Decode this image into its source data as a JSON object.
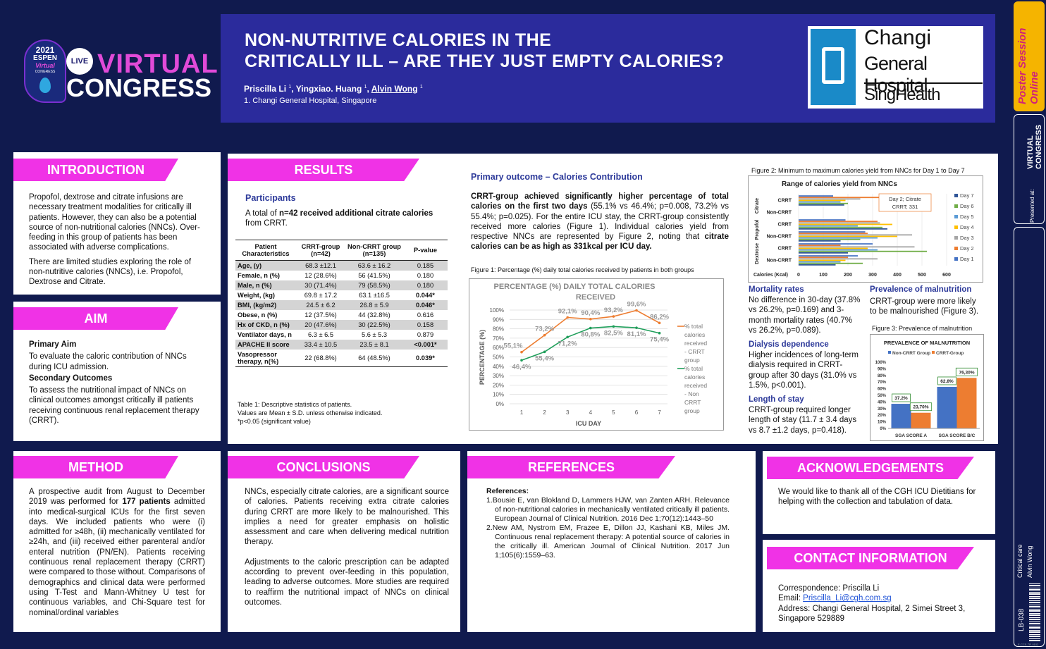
{
  "header": {
    "year": "2021",
    "espen": "ESPEN",
    "virtual": "Virtual",
    "congress_small": "CONGRESS",
    "live": "LIVE",
    "virtual_big": "VIRTUAL",
    "congress_big": "CONGRESS",
    "title1": "NON-NUTRITIVE CALORIES IN THE",
    "title2": "CRITICALLY ILL – ARE THEY JUST EMPTY CALORIES?",
    "author1": "Priscilla Li",
    "author2": "Yingxiao. Huang",
    "author3": "Alvin Wong",
    "sup": "1",
    "affiliation": "1. Changi General Hospital, Singapore",
    "logo_line1": "Changi",
    "logo_line2": "General Hospital",
    "logo_line3": "SingHealth"
  },
  "side": {
    "poster_session": "Poster Session Online",
    "presented_at": "Presented at:",
    "vc_label": "VIRTUAL CONGRESS",
    "category": "Critical care",
    "author": "Alvin Wong",
    "code": "LB-038",
    "small_code": "E-CCS-TR-0102"
  },
  "intro": {
    "title": "INTRODUCTION",
    "p1": "Propofol, dextrose and citrate infusions are necessary treatment modalities for critically ill patients. However, they can also be a potential source of non-nutritional calories (NNCs). Over-feeding in this group of patients has been associated with adverse complications.",
    "p2": "There are limited studies exploring the role of non-nutritive calories (NNCs), i.e. Propofol, Dextrose and Citrate."
  },
  "aim": {
    "title": "AIM",
    "h1": "Primary Aim",
    "p1": "To evaluate the caloric contribution of NNCs during ICU admission.",
    "h2": "Secondary Outcomes",
    "p2": "To assess the nutritional impact of NNCs on clinical outcomes amongst critically ill patients receiving continuous renal replacement therapy (CRRT)."
  },
  "results": {
    "title": "RESULTS",
    "participants": "Participants",
    "part_pre": "A total of ",
    "part_bold": "n=42 received additional citrate calories",
    "part_post": " from CRRT.",
    "table_head": [
      "Patient Characteristics",
      "CRRT-group (n=42)",
      "Non-CRRT group (n=135)",
      "P-value"
    ],
    "table_rows": [
      [
        "Age, (y)",
        "68.3 ±12.1",
        "63.6 ± 16.2",
        "0.185"
      ],
      [
        "Female, n (%)",
        "12 (28.6%)",
        "56 (41.5%)",
        "0.180"
      ],
      [
        "Male, n (%)",
        "30 (71.4%)",
        "79 (58.5%)",
        "0.180"
      ],
      [
        "Weight, (kg)",
        "69.8 ± 17.2",
        "63.1 ±16.5",
        "0.044*"
      ],
      [
        "BMI, (kg/m2)",
        "24.5 ±  6.2",
        "26.8 ± 5.9",
        "0.046*"
      ],
      [
        "Obese, n (%)",
        "12 (37.5%)",
        "44 (32.8%)",
        "0.616"
      ],
      [
        "Hx of CKD, n (%)",
        "20 (47.6%)",
        "30 (22.5%)",
        "0.158"
      ],
      [
        "Ventilator days, n",
        "6.3  ± 6.5",
        "5.6 ± 5.3",
        "0.879"
      ],
      [
        "APACHE II score",
        "33.4 ± 10.5",
        "23.5 ± 8.1",
        "<0.001*"
      ],
      [
        "Vasopressor therapy, n(%)",
        "22 (68.8%)",
        "64 (48.5%)",
        "0.039*"
      ]
    ],
    "table_caption1": "Table 1: Descriptive statistics of patients.",
    "table_caption2": "Values are Mean ± S.D. unless otherwise indicated.",
    "table_caption3": "*p<0.05 (significant value)",
    "primary_title": "Primary outcome – Calories Contribution",
    "primary_b1": "CRRT-group achieved significantly higher percentage of total calories on the first two days",
    "primary_t1": " (55.1% vs 46.4%; p=0.008, 73.2% vs 55.4%; p=0.025). For the entire ICU stay, the CRRT-group consistently received more calories (Figure 1). Individual calories yield from respective NNCs are represented by Figure 2, noting that ",
    "primary_b2": "citrate calories can be as high as 331kcal per ICU day.",
    "fig1_caption": "Figure 1: Percentage (%) daily total calories received by patients in both groups",
    "fig2_caption": "Figure 2: Minimum to maximum calories yield from NNCs for Day 1 to Day 7",
    "fig3_caption": "Figure 3: Prevalence of malnutrition",
    "mort_title": "Mortality rates",
    "mort_text": "No difference in 30-day (37.8% vs 26.2%, p=0.169) and 3-month mortality rates (40.7% vs 26.2%, p=0.089).",
    "dial_title": "Dialysis dependence",
    "dial_text": "Higher incidences of long-term dialysis required in CRRT-group after 30 days (31.0% vs 1.5%, p<0.001).",
    "los_title": "Length of stay",
    "los_text": "CRRT-group required longer length of stay (11.7 ± 3.4 days vs 8.7 ±1.2 days, p=0.418).",
    "maln_title": "Prevalence of malnutrition",
    "maln_text": "CRRT-group were more likely to be malnourished (Figure 3)."
  },
  "method": {
    "title": "METHOD",
    "pre": "A prospective audit from August to December 2019 was performed for ",
    "bold": "177 patients",
    "post": " admitted into medical-surgical ICUs for the first seven days. We included patients who were (i) admitted for ≥48h, (ii) mechanically ventilated for ≥24h, and (iii) received either parenteral and/or enteral nutrition (PN/EN). Patients receiving continuous renal replacement therapy (CRRT) were compared to those without. Comparisons of demographics and clinical data were performed using T-Test and Mann-Whitney U test for continuous variables, and Chi-Square test for nominal/ordinal variables"
  },
  "conclusions": {
    "title": "CONCLUSIONS",
    "p1": "NNCs, especially citrate calories, are a significant source of calories. Patients receiving extra citrate calories during CRRT are more likely to be malnourished. This implies a need for greater emphasis on holistic assessment and care when delivering medical nutrition therapy.",
    "p2": "Adjustments to the caloric prescription can be adapted according to prevent over-feeding in this population, leading to adverse outcomes. More studies are required to reaffirm the nutritional impact of NNCs on clinical outcomes."
  },
  "references": {
    "title": "REFERENCES",
    "label": "References:",
    "r1": "1.Bousie E, van Blokland D, Lammers HJW, van Zanten ARH. Relevance of non-nutritional calories in mechanically ventilated critically ill patients. European Journal of Clinical Nutrition. 2016 Dec 1;70(12):1443–50",
    "r2": "2.New AM, Nystrom EM, Frazee E, Dillon JJ, Kashani KB, Miles JM. Continuous renal replacement therapy: A potential source of calories in the critically ill. American Journal of Clinical Nutrition. 2017 Jun 1;105(6):1559–63."
  },
  "ack": {
    "title": "ACKNOWLEDGEMENTS",
    "text": "We would like to thank all of the CGH ICU Dietitians for helping with the collection and tabulation of data."
  },
  "contact": {
    "title": "CONTACT INFORMATION",
    "l1": "Correspondence: Priscilla Li",
    "email_label": "Email: ",
    "email": "Priscilla_Li@cgh.com.sg",
    "l3": "Address: Changi General Hospital, 2 Simei Street 3,",
    "l4": "Singapore 529889"
  },
  "colors": {
    "magenta": "#f032e6",
    "navy": "#101a4e",
    "header": "#2b2b9c",
    "orange": "#ed7d31",
    "green": "#1f9e5a",
    "blue": "#4472c4"
  },
  "chart_data": [
    {
      "type": "line",
      "title": "PERCENTAGE (%) DAILY TOTAL CALORIES RECEIVED",
      "xlabel": "ICU DAY",
      "ylabel": "PERCENTAGE (%)",
      "x": [
        1,
        2,
        3,
        4,
        5,
        6,
        7
      ],
      "ylim": [
        0,
        100
      ],
      "legend": "right",
      "series": [
        {
          "name": "% total calories received - CRRT group",
          "values": [
            55.1,
            73.2,
            92.1,
            90.4,
            93.2,
            99.6,
            86.2
          ],
          "labels": [
            "55,1%",
            "73,2%",
            "92,1%",
            "90,4%",
            "93,2%",
            "99,6%",
            "86,2%"
          ]
        },
        {
          "name": "% total calories received - Non CRRT group",
          "values": [
            46.4,
            55.4,
            71.2,
            80.8,
            82.5,
            81.1,
            75.4
          ],
          "labels": [
            "46,4%",
            "55,4%",
            "71,2%",
            "80,8%",
            "82,5%",
            "81,1%",
            "75,4%"
          ]
        }
      ]
    },
    {
      "type": "bar",
      "orientation": "horizontal",
      "title": "Range of calories yield from NNCs",
      "xlabel": "Calories (Kcal)",
      "xlim": [
        0,
        600
      ],
      "categories": [
        "Non-CRRT",
        "CRRT",
        "Non-CRRT",
        "CRRT",
        "Non-CRRT",
        "CRRT"
      ],
      "groups": [
        "Dextrose",
        "Propofol",
        "Citrate"
      ],
      "annotation": "Day 2; Citrate CRRT; 331",
      "legend": "right",
      "series": [
        {
          "name": "Day 7",
          "values": [
            150,
            200,
            170,
            360,
            0,
            185
          ]
        },
        {
          "name": "Day 6",
          "values": [
            260,
            520,
            250,
            340,
            0,
            200
          ]
        },
        {
          "name": "Day 5",
          "values": [
            170,
            320,
            320,
            240,
            0,
            170
          ]
        },
        {
          "name": "Day 4",
          "values": [
            190,
            280,
            400,
            380,
            0,
            190
          ]
        },
        {
          "name": "Day 3",
          "values": [
            320,
            470,
            460,
            330,
            0,
            250
          ]
        },
        {
          "name": "Day 2",
          "values": [
            200,
            170,
            280,
            320,
            0,
            331
          ]
        },
        {
          "name": "Day 1",
          "values": [
            240,
            300,
            270,
            190,
            0,
            140
          ]
        }
      ]
    },
    {
      "type": "bar",
      "title": "PREVALENCE OF MALNUTRITION",
      "categories": [
        "SGA SCORE A",
        "SGA SCORE B/C"
      ],
      "ylim": [
        0,
        100
      ],
      "legend": "top",
      "series": [
        {
          "name": "Non-CRRT Group",
          "values": [
            37.2,
            62.8
          ],
          "labels": [
            "37.2%",
            "62.8%"
          ]
        },
        {
          "name": "CRRT-Group",
          "values": [
            23.7,
            76.3
          ],
          "labels": [
            "23,70%",
            "76,30%"
          ]
        }
      ]
    }
  ]
}
